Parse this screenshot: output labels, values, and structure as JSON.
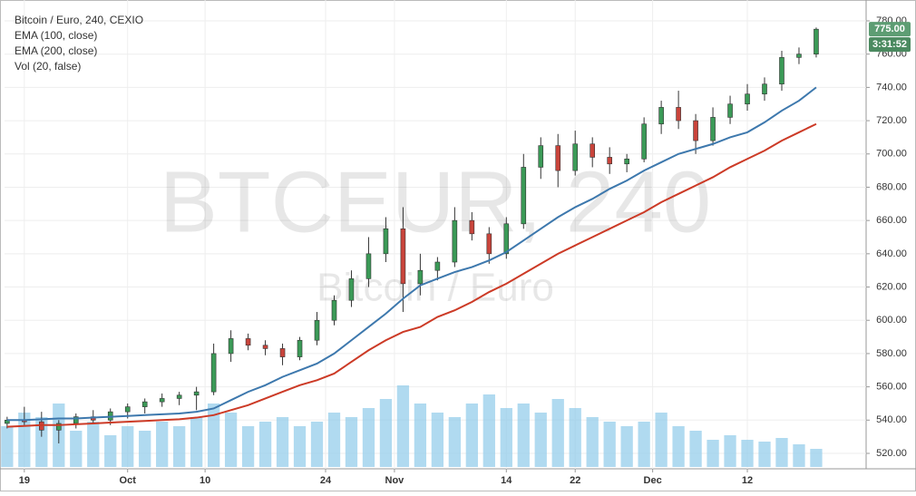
{
  "chart_data": {
    "type": "candlestick",
    "title": "Bitcoin / Euro, 240, CEXIO",
    "watermark": "BTCEUR, 240",
    "watermark_subtitle": "Bitcoin / Euro",
    "volume_name": "Vol (20, false)",
    "x": [
      17,
      19,
      21,
      23,
      25,
      27,
      29,
      31,
      33,
      35,
      37,
      39,
      41,
      43,
      45,
      47,
      49,
      51,
      53,
      55,
      57,
      59,
      61,
      63,
      65,
      67,
      69,
      71,
      73,
      75,
      77,
      79,
      81,
      83,
      85,
      87,
      89,
      91,
      93,
      95,
      97,
      99,
      101,
      103,
      105,
      107,
      109,
      111
    ],
    "open": [
      538,
      540,
      539,
      534,
      538,
      542,
      540,
      545,
      548,
      551,
      553,
      555,
      557,
      580,
      589,
      585,
      583,
      578,
      588,
      600,
      612,
      625,
      640,
      655,
      622,
      630,
      635,
      660,
      652,
      640,
      658,
      692,
      705,
      690,
      706,
      698,
      694,
      697,
      718,
      728,
      720,
      708,
      722,
      730,
      736,
      742,
      758,
      760
    ],
    "high": [
      542,
      548,
      545,
      540,
      544,
      546,
      547,
      550,
      553,
      556,
      557,
      560,
      586,
      594,
      592,
      588,
      586,
      590,
      605,
      615,
      630,
      650,
      662,
      668,
      640,
      638,
      668,
      665,
      656,
      662,
      700,
      710,
      712,
      714,
      710,
      704,
      700,
      722,
      732,
      738,
      724,
      728,
      735,
      742,
      746,
      762,
      764,
      776
    ],
    "low": [
      535,
      537,
      530,
      526,
      535,
      538,
      537,
      541,
      544,
      548,
      549,
      546,
      555,
      575,
      582,
      579,
      573,
      576,
      585,
      597,
      608,
      620,
      635,
      605,
      615,
      624,
      632,
      648,
      634,
      637,
      655,
      685,
      680,
      687,
      692,
      688,
      689,
      695,
      712,
      715,
      700,
      705,
      718,
      726,
      732,
      738,
      754,
      758
    ],
    "close": [
      540,
      539,
      534,
      538,
      542,
      540,
      545,
      548,
      551,
      553,
      555,
      557,
      580,
      589,
      585,
      583,
      578,
      588,
      600,
      612,
      625,
      640,
      655,
      622,
      630,
      635,
      660,
      652,
      640,
      658,
      692,
      705,
      690,
      706,
      698,
      694,
      697,
      718,
      728,
      720,
      708,
      722,
      730,
      736,
      742,
      758,
      760,
      775
    ],
    "volume": [
      45,
      60,
      55,
      70,
      40,
      50,
      35,
      45,
      40,
      50,
      45,
      55,
      70,
      60,
      45,
      50,
      55,
      45,
      50,
      60,
      55,
      65,
      75,
      90,
      70,
      60,
      55,
      70,
      80,
      65,
      70,
      60,
      75,
      65,
      55,
      50,
      45,
      50,
      60,
      45,
      40,
      30,
      35,
      30,
      28,
      32,
      25,
      20
    ],
    "series": [
      {
        "name": "EMA (100, close)",
        "color": "#3d78ad",
        "values": [
          540,
          540,
          540.5,
          541,
          541,
          541.5,
          542,
          542.5,
          543,
          543.5,
          544,
          545,
          547,
          552,
          557,
          561,
          566,
          570,
          574,
          580,
          588,
          596,
          604,
          613,
          621,
          625,
          629,
          632,
          636,
          641,
          648,
          655,
          662,
          668,
          673,
          679,
          684,
          690,
          695,
          700,
          703,
          706,
          710,
          713,
          719,
          726,
          732,
          740
        ]
      },
      {
        "name": "EMA (200, close)",
        "color": "#cc3a26",
        "values": [
          536,
          536.5,
          537,
          537,
          537.5,
          538,
          538.5,
          539,
          539.5,
          540,
          540.5,
          541.5,
          543,
          546,
          549,
          553,
          557,
          561,
          564,
          568,
          575,
          582,
          588,
          593,
          596,
          602,
          606,
          611,
          617,
          622,
          628,
          634,
          640,
          645,
          650,
          655,
          660,
          665,
          671,
          676,
          681,
          686,
          692,
          697,
          702,
          708,
          713,
          718
        ]
      }
    ],
    "up_color": "#3b9a57",
    "down_color": "#c9443b",
    "volume_color": "#8ecbea",
    "xlim": [
      16.7,
      116.8
    ],
    "ylim": [
      520,
      780
    ],
    "xticks": [
      {
        "value": 19,
        "label": "19"
      },
      {
        "value": 31,
        "label": "Oct"
      },
      {
        "value": 40,
        "label": "10"
      },
      {
        "value": 54,
        "label": "24"
      },
      {
        "value": 62,
        "label": "Nov"
      },
      {
        "value": 75,
        "label": "14"
      },
      {
        "value": 83,
        "label": "22"
      },
      {
        "value": 92,
        "label": "Dec"
      },
      {
        "value": 103,
        "label": "12"
      }
    ],
    "yticks": [
      {
        "value": 520,
        "label": "520.00"
      },
      {
        "value": 540,
        "label": "540.00"
      },
      {
        "value": 560,
        "label": "560.00"
      },
      {
        "value": 580,
        "label": "580.00"
      },
      {
        "value": 600,
        "label": "600.00"
      },
      {
        "value": 620,
        "label": "620.00"
      },
      {
        "value": 640,
        "label": "640.00"
      },
      {
        "value": 660,
        "label": "660.00"
      },
      {
        "value": 680,
        "label": "680.00"
      },
      {
        "value": 700,
        "label": "700.00"
      },
      {
        "value": 720,
        "label": "720.00"
      },
      {
        "value": 740,
        "label": "740.00"
      },
      {
        "value": 760,
        "label": "760.00"
      },
      {
        "value": 780,
        "label": "780.00"
      }
    ],
    "last_price": {
      "value": 775,
      "label": "775.00"
    },
    "countdown": "3:31:52",
    "grid": true
  }
}
